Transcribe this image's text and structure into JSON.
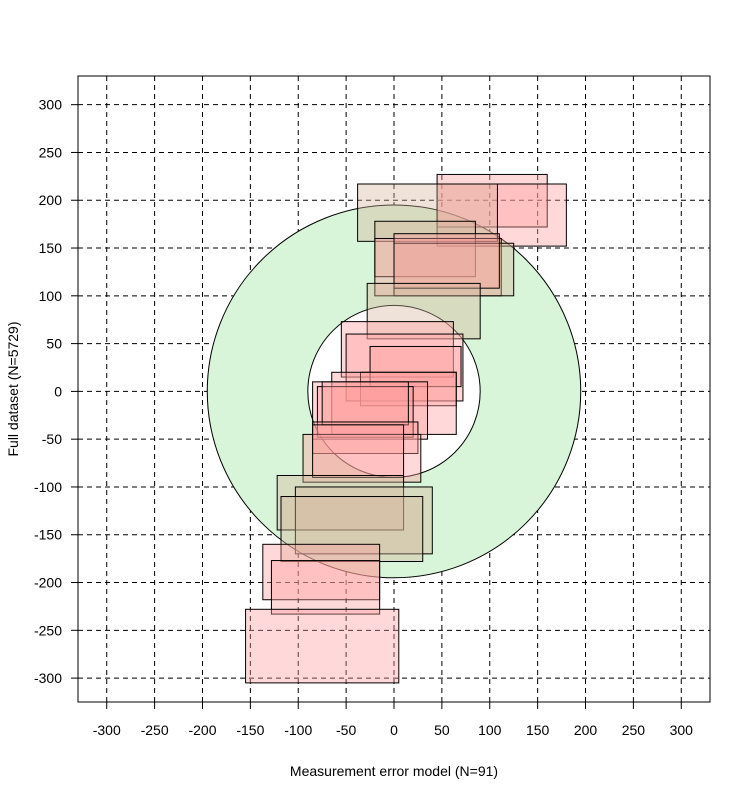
{
  "chart_data": {
    "type": "scatter",
    "xlabel": "Measurement error model (N=91)",
    "ylabel": "Full dataset (N=5729)",
    "xlim": [
      -330,
      330
    ],
    "ylim": [
      -325,
      330
    ],
    "xticks": [
      -300,
      -250,
      -200,
      -150,
      -100,
      -50,
      0,
      50,
      100,
      150,
      200,
      250,
      300
    ],
    "yticks": [
      -300,
      -250,
      -200,
      -150,
      -100,
      -50,
      0,
      50,
      100,
      150,
      200,
      250,
      300
    ],
    "grid": true,
    "colors": {
      "pink_box": "#ff9b9b",
      "tan_box": "#d4b49b",
      "outer_circle_fill": "#d9f5d9",
      "inner_circle_fill": "#ffffff"
    },
    "circles": [
      {
        "name": "outer",
        "cx": 0,
        "cy": 0,
        "r": 195
      },
      {
        "name": "inner",
        "cx": 0,
        "cy": 0,
        "r": 90
      }
    ],
    "boxes": [
      {
        "x1": 45,
        "x2": 160,
        "y1": 172,
        "y2": 227,
        "kind": "pink"
      },
      {
        "x1": 45,
        "x2": 180,
        "y1": 152,
        "y2": 217,
        "kind": "pink"
      },
      {
        "x1": -38,
        "x2": 108,
        "y1": 157,
        "y2": 217,
        "kind": "tan"
      },
      {
        "x1": -20,
        "x2": 85,
        "y1": 120,
        "y2": 178,
        "kind": "tan"
      },
      {
        "x1": -20,
        "x2": 112,
        "y1": 100,
        "y2": 160,
        "kind": "pink"
      },
      {
        "x1": 0,
        "x2": 125,
        "y1": 100,
        "y2": 155,
        "kind": "tan"
      },
      {
        "x1": 0,
        "x2": 110,
        "y1": 108,
        "y2": 165,
        "kind": "pink"
      },
      {
        "x1": -28,
        "x2": 90,
        "y1": 55,
        "y2": 113,
        "kind": "tan"
      },
      {
        "x1": -55,
        "x2": 62,
        "y1": 15,
        "y2": 73,
        "kind": "pink"
      },
      {
        "x1": -50,
        "x2": 72,
        "y1": -10,
        "y2": 60,
        "kind": "pink"
      },
      {
        "x1": -25,
        "x2": 70,
        "y1": 5,
        "y2": 47,
        "kind": "pink"
      },
      {
        "x1": -35,
        "x2": 65,
        "y1": -15,
        "y2": 20,
        "kind": "pink"
      },
      {
        "x1": -65,
        "x2": 65,
        "y1": -45,
        "y2": 20,
        "kind": "pink"
      },
      {
        "x1": -85,
        "x2": 35,
        "y1": -50,
        "y2": 10,
        "kind": "pink"
      },
      {
        "x1": -80,
        "x2": 20,
        "y1": -48,
        "y2": 5,
        "kind": "pink"
      },
      {
        "x1": -75,
        "x2": 15,
        "y1": -35,
        "y2": 10,
        "kind": "pink"
      },
      {
        "x1": -85,
        "x2": 25,
        "y1": -65,
        "y2": -32,
        "kind": "pink"
      },
      {
        "x1": -95,
        "x2": 28,
        "y1": -95,
        "y2": -45,
        "kind": "pink"
      },
      {
        "x1": -85,
        "x2": 10,
        "y1": -90,
        "y2": -35,
        "kind": "pink"
      },
      {
        "x1": -122,
        "x2": 10,
        "y1": -145,
        "y2": -88,
        "kind": "tan"
      },
      {
        "x1": -103,
        "x2": 40,
        "y1": -170,
        "y2": -100,
        "kind": "tan"
      },
      {
        "x1": -118,
        "x2": 30,
        "y1": -178,
        "y2": -110,
        "kind": "tan"
      },
      {
        "x1": -137,
        "x2": -15,
        "y1": -218,
        "y2": -160,
        "kind": "pink"
      },
      {
        "x1": -128,
        "x2": -15,
        "y1": -233,
        "y2": -177,
        "kind": "pink"
      },
      {
        "x1": -155,
        "x2": 5,
        "y1": -305,
        "y2": -228,
        "kind": "pink"
      }
    ]
  }
}
